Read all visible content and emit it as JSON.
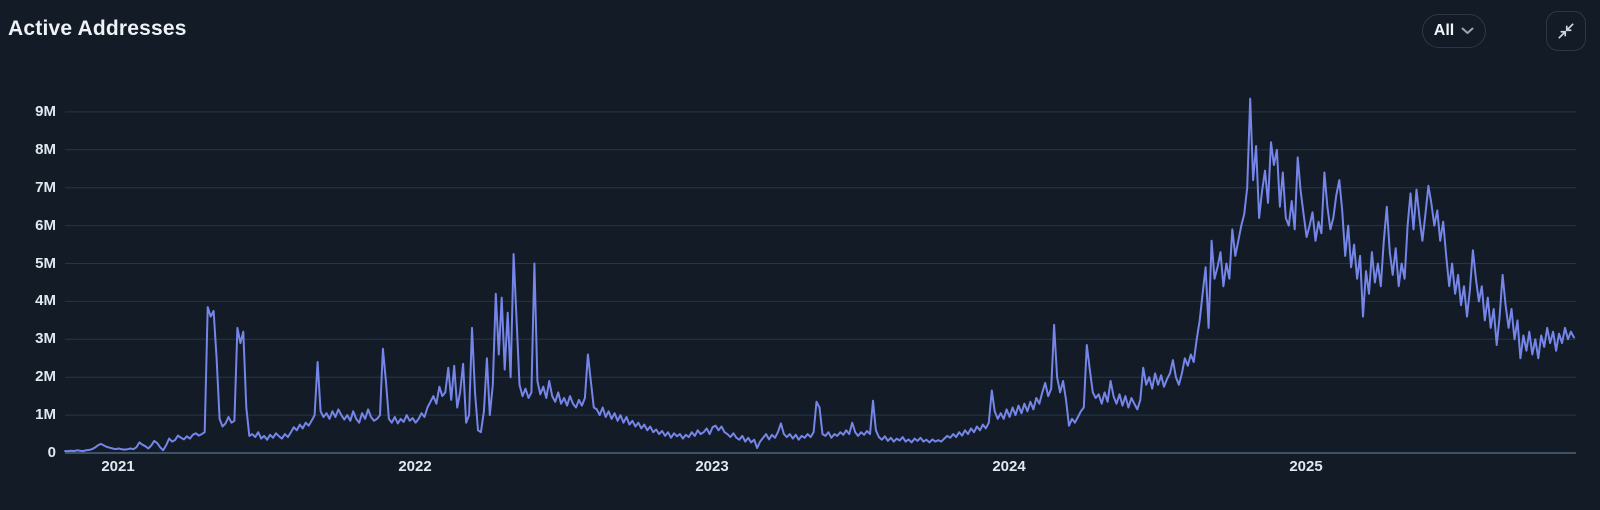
{
  "header": {
    "title": "Active Addresses",
    "range_selector": {
      "selected": "All",
      "chevron_icon": "chevron-down-icon"
    },
    "collapse_button": {
      "icon": "collapse-arrows-icon"
    }
  },
  "colors": {
    "background": "#121b26",
    "line": "#7585e8",
    "grid": "#21374e",
    "baseline": "#4c647c",
    "text": "#e2e8ef"
  },
  "chart_data": {
    "type": "line",
    "title": "Active Addresses",
    "series_name": "Active Addresses",
    "unit": "M",
    "grid": "horizontal",
    "legend": "none",
    "ylim": [
      0,
      9.7
    ],
    "y_ticks": [
      {
        "label": "0",
        "value": 0
      },
      {
        "label": "1M",
        "value": 1
      },
      {
        "label": "2M",
        "value": 2
      },
      {
        "label": "3M",
        "value": 3
      },
      {
        "label": "4M",
        "value": 4
      },
      {
        "label": "5M",
        "value": 5
      },
      {
        "label": "6M",
        "value": 6
      },
      {
        "label": "7M",
        "value": 7
      },
      {
        "label": "8M",
        "value": 8
      },
      {
        "label": "9M",
        "value": 9
      }
    ],
    "x_ticks": [
      {
        "label": "2021",
        "year": 2021
      },
      {
        "label": "2022",
        "year": 2022
      },
      {
        "label": "2023",
        "year": 2023
      },
      {
        "label": "2024",
        "year": 2024
      },
      {
        "label": "2025",
        "year": 2025
      }
    ],
    "x_start_year": 2020.822,
    "x_step_years": 0.01,
    "values_m": [
      0.05,
      0.05,
      0.06,
      0.05,
      0.07,
      0.06,
      0.05,
      0.07,
      0.08,
      0.1,
      0.14,
      0.2,
      0.24,
      0.2,
      0.16,
      0.14,
      0.12,
      0.1,
      0.12,
      0.1,
      0.09,
      0.1,
      0.12,
      0.1,
      0.15,
      0.28,
      0.22,
      0.18,
      0.12,
      0.2,
      0.32,
      0.26,
      0.15,
      0.07,
      0.2,
      0.38,
      0.3,
      0.34,
      0.46,
      0.4,
      0.36,
      0.44,
      0.38,
      0.48,
      0.52,
      0.46,
      0.5,
      0.55,
      3.85,
      3.6,
      3.75,
      2.5,
      0.9,
      0.7,
      0.78,
      0.95,
      0.8,
      0.85,
      3.3,
      2.9,
      3.2,
      1.2,
      0.45,
      0.5,
      0.42,
      0.55,
      0.38,
      0.45,
      0.35,
      0.48,
      0.4,
      0.52,
      0.44,
      0.38,
      0.5,
      0.42,
      0.55,
      0.68,
      0.6,
      0.75,
      0.65,
      0.8,
      0.72,
      0.85,
      1.0,
      2.4,
      1.1,
      0.95,
      1.05,
      0.9,
      1.1,
      0.95,
      1.15,
      1.0,
      0.88,
      1.0,
      0.85,
      1.1,
      0.9,
      0.8,
      1.05,
      0.9,
      1.15,
      0.95,
      0.85,
      0.9,
      1.0,
      2.75,
      1.9,
      0.9,
      0.8,
      0.95,
      0.78,
      0.9,
      0.82,
      1.0,
      0.85,
      0.92,
      0.8,
      0.9,
      1.05,
      0.95,
      1.2,
      1.35,
      1.5,
      1.3,
      1.75,
      1.5,
      1.6,
      2.25,
      1.4,
      2.3,
      1.2,
      1.6,
      2.35,
      0.8,
      1.0,
      3.3,
      1.6,
      0.6,
      0.55,
      1.1,
      2.5,
      1.0,
      1.8,
      4.2,
      2.6,
      4.1,
      2.2,
      3.7,
      2.0,
      5.25,
      3.5,
      1.8,
      1.5,
      1.7,
      1.45,
      1.6,
      5.0,
      1.9,
      1.55,
      1.75,
      1.45,
      1.9,
      1.5,
      1.35,
      1.6,
      1.3,
      1.45,
      1.25,
      1.5,
      1.3,
      1.2,
      1.4,
      1.25,
      1.45,
      2.6,
      1.9,
      1.2,
      1.15,
      1.0,
      1.2,
      0.95,
      1.1,
      0.9,
      1.05,
      0.85,
      1.0,
      0.8,
      0.95,
      0.75,
      0.85,
      0.7,
      0.8,
      0.65,
      0.75,
      0.6,
      0.7,
      0.55,
      0.62,
      0.5,
      0.58,
      0.45,
      0.55,
      0.4,
      0.52,
      0.44,
      0.5,
      0.38,
      0.48,
      0.42,
      0.55,
      0.45,
      0.6,
      0.5,
      0.55,
      0.65,
      0.5,
      0.68,
      0.72,
      0.6,
      0.7,
      0.55,
      0.5,
      0.42,
      0.52,
      0.4,
      0.35,
      0.45,
      0.3,
      0.4,
      0.28,
      0.35,
      0.13,
      0.3,
      0.4,
      0.5,
      0.36,
      0.48,
      0.4,
      0.55,
      0.78,
      0.5,
      0.42,
      0.5,
      0.38,
      0.48,
      0.35,
      0.45,
      0.4,
      0.5,
      0.42,
      0.55,
      1.35,
      1.2,
      0.5,
      0.45,
      0.55,
      0.4,
      0.5,
      0.45,
      0.55,
      0.48,
      0.6,
      0.5,
      0.8,
      0.55,
      0.45,
      0.55,
      0.48,
      0.58,
      0.5,
      1.38,
      0.6,
      0.42,
      0.35,
      0.44,
      0.32,
      0.4,
      0.3,
      0.38,
      0.33,
      0.42,
      0.3,
      0.36,
      0.28,
      0.38,
      0.32,
      0.4,
      0.3,
      0.35,
      0.28,
      0.36,
      0.3,
      0.34,
      0.3,
      0.38,
      0.45,
      0.4,
      0.5,
      0.42,
      0.55,
      0.46,
      0.6,
      0.5,
      0.65,
      0.55,
      0.7,
      0.6,
      0.75,
      0.65,
      0.8,
      1.65,
      1.1,
      0.9,
      1.05,
      0.9,
      1.15,
      0.95,
      1.2,
      1.0,
      1.25,
      1.05,
      1.3,
      1.1,
      1.35,
      1.15,
      1.45,
      1.3,
      1.6,
      1.85,
      1.5,
      1.7,
      3.38,
      2.0,
      1.6,
      1.9,
      1.4,
      0.72,
      0.9,
      0.8,
      0.95,
      1.1,
      1.2,
      2.85,
      2.2,
      1.6,
      1.45,
      1.55,
      1.3,
      1.6,
      1.35,
      1.9,
      1.5,
      1.3,
      1.55,
      1.25,
      1.5,
      1.2,
      1.45,
      1.3,
      1.15,
      1.4,
      2.25,
      1.8,
      2.0,
      1.7,
      2.1,
      1.8,
      2.05,
      1.75,
      1.95,
      2.1,
      2.45,
      2.0,
      1.8,
      2.1,
      2.5,
      2.3,
      2.6,
      2.4,
      3.0,
      3.5,
      4.2,
      4.9,
      3.3,
      5.6,
      4.6,
      4.9,
      5.3,
      4.4,
      5.0,
      4.6,
      5.9,
      5.2,
      5.6,
      6.0,
      6.3,
      7.0,
      9.35,
      7.2,
      8.1,
      6.2,
      6.9,
      7.45,
      6.6,
      8.2,
      7.6,
      8.0,
      6.5,
      7.4,
      6.2,
      6.0,
      6.65,
      5.9,
      7.8,
      6.9,
      6.3,
      5.7,
      6.0,
      6.35,
      5.6,
      6.1,
      5.8,
      7.4,
      6.5,
      5.9,
      6.2,
      6.8,
      7.2,
      6.4,
      5.2,
      6.0,
      4.9,
      5.5,
      4.6,
      5.2,
      3.6,
      4.8,
      4.2,
      5.3,
      4.5,
      5.0,
      4.4,
      5.6,
      6.5,
      5.3,
      4.7,
      5.4,
      4.4,
      5.0,
      4.6,
      6.0,
      6.85,
      5.9,
      6.95,
      6.2,
      5.6,
      6.3,
      7.05,
      6.6,
      6.0,
      6.4,
      5.6,
      6.1,
      5.2,
      4.4,
      5.0,
      4.2,
      4.7,
      3.9,
      4.4,
      3.6,
      4.3,
      5.35,
      4.6,
      4.0,
      4.4,
      3.5,
      4.1,
      3.3,
      3.8,
      2.85,
      3.6,
      4.7,
      3.9,
      3.3,
      3.8,
      3.0,
      3.5,
      2.5,
      3.1,
      2.7,
      3.2,
      2.6,
      3.0,
      2.5,
      3.1,
      2.8,
      3.3,
      2.9,
      3.2,
      2.7,
      3.15,
      2.9,
      3.3,
      3.0,
      3.2,
      3.05
    ]
  }
}
